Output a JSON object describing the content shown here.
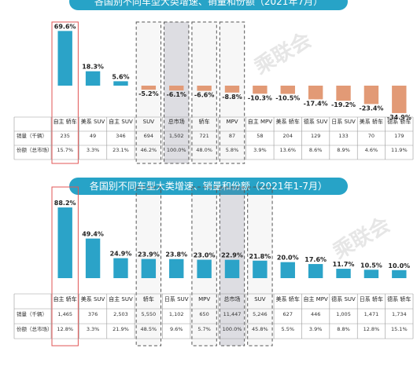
{
  "titles": {
    "top": "各国别不同车型大类增速、销量和份额（2021年7月）",
    "bottom": "各国别不同车型大类增速、销量和份额（2021年1-7月）"
  },
  "watermark": "乘联会",
  "row_labels": {
    "sales": "销量（千辆）",
    "share": "份额（总市场）"
  },
  "colors": {
    "positive": "#2ba3c8",
    "negative": "#e29a76",
    "highlight_border": "#e05555"
  },
  "chart_data": [
    {
      "type": "bar",
      "period": "2021年7月",
      "categories": [
        "自主 轿车",
        "美系 SUV",
        "自主 SUV",
        "SUV",
        "总市场",
        "轿车",
        "MPV",
        "自主 MPV",
        "美系 轿车",
        "德系 SUV",
        "日系 SUV",
        "美系 轿车",
        "德系 轿车"
      ],
      "values": [
        69.6,
        18.3,
        5.6,
        -5.2,
        -6.1,
        -6.6,
        -8.8,
        -10.3,
        -10.5,
        -17.4,
        -19.2,
        -23.4,
        -34.9
      ],
      "value_labels": [
        "69.6%",
        "18.3%",
        "5.6%",
        "-5.2%",
        "-6.1%",
        "-6.6%",
        "-8.8%",
        "-10.3%",
        "-10.5%",
        "-17.4%",
        "-19.2%",
        "-23.4%",
        "-34.9%"
      ],
      "sales": [
        "235",
        "49",
        "346",
        "694",
        "1,502",
        "721",
        "87",
        "58",
        "204",
        "129",
        "133",
        "70",
        "179"
      ],
      "share": [
        "15.7%",
        "3.3%",
        "23.1%",
        "46.2%",
        "100.0%",
        "48.0%",
        "5.8%",
        "3.9%",
        "13.6%",
        "8.6%",
        "8.9%",
        "4.6%",
        "11.9%"
      ],
      "highlighted": [
        3,
        4,
        5,
        6
      ],
      "shaded": [
        4
      ],
      "red_outlined": [
        0
      ],
      "ylim": [
        -40,
        75
      ]
    },
    {
      "type": "bar",
      "period": "2021年1-7月",
      "categories": [
        "自主 轿车",
        "美系 SUV",
        "自主 SUV",
        "轿车",
        "日系 SUV",
        "MPV",
        "总市场",
        "SUV",
        "美系 轿车",
        "自主 MPV",
        "德系 SUV",
        "日系 轿车",
        "德系 轿车"
      ],
      "values": [
        88.2,
        49.4,
        24.9,
        23.9,
        23.8,
        23.0,
        22.9,
        21.8,
        20.0,
        17.6,
        11.7,
        10.5,
        10.0
      ],
      "value_labels": [
        "88.2%",
        "49.4%",
        "24.9%",
        "23.9%",
        "23.8%",
        "23.0%",
        "22.9%",
        "21.8%",
        "20.0%",
        "17.6%",
        "11.7%",
        "10.5%",
        "10.0%"
      ],
      "sales": [
        "1,465",
        "376",
        "2,503",
        "5,550",
        "1,102",
        "650",
        "11,447",
        "5,246",
        "627",
        "446",
        "1,005",
        "1,471",
        "1,734"
      ],
      "share": [
        "12.8%",
        "3.3%",
        "21.9%",
        "48.5%",
        "9.6%",
        "5.7%",
        "100.0%",
        "45.8%",
        "5.5%",
        "3.9%",
        "8.8%",
        "12.8%",
        "15.1%"
      ],
      "highlighted": [
        3,
        5,
        6,
        7
      ],
      "shaded": [
        6
      ],
      "red_outlined": [
        0
      ],
      "ylim": [
        0,
        95
      ]
    }
  ]
}
